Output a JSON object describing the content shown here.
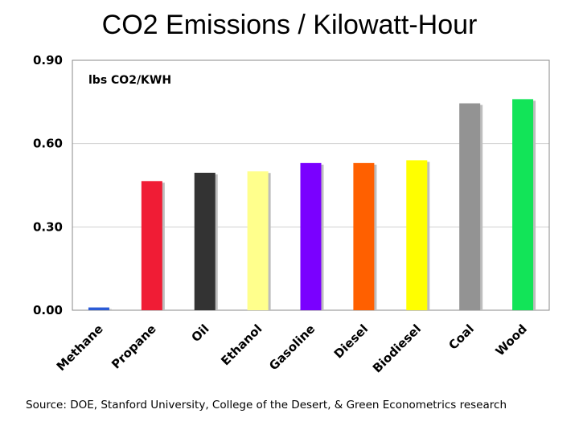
{
  "chart_data": {
    "type": "bar",
    "title": "CO2 Emissions / Kilowatt-Hour",
    "unit_label": "lbs CO2/KWH",
    "categories": [
      "Methane",
      "Propane",
      "Oil",
      "Ethanol",
      "Gasoline",
      "Diesel",
      "Biodiesel",
      "Coal",
      "Wood"
    ],
    "values": [
      0.01,
      0.465,
      0.495,
      0.5,
      0.53,
      0.53,
      0.54,
      0.745,
      0.76
    ],
    "colors": [
      "#2b5bd6",
      "#f01c35",
      "#333333",
      "#ffff8c",
      "#7a00ff",
      "#ff6000",
      "#ffff00",
      "#939393",
      "#12e458"
    ],
    "yticks": [
      "0.00",
      "0.30",
      "0.60",
      "0.90"
    ],
    "ylim": [
      0,
      0.9
    ],
    "grid": true,
    "xlabel": "",
    "ylabel": ""
  },
  "source": "Source: DOE, Stanford University, College of the Desert, & Green Econometrics research"
}
